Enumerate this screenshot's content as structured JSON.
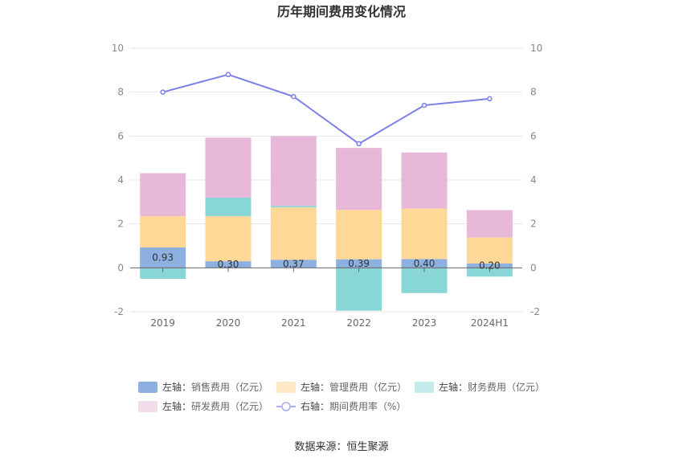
{
  "chart_data": {
    "type": "bar",
    "title": "历年期间费用变化情况",
    "categories": [
      "2019",
      "2020",
      "2021",
      "2022",
      "2023",
      "2024H1"
    ],
    "left_axis": {
      "ylim": [
        -2,
        10
      ],
      "ticks": [
        -2,
        0,
        2,
        4,
        6,
        8,
        10
      ]
    },
    "right_axis": {
      "ylim": [
        -2,
        10
      ],
      "ticks": [
        -2,
        0,
        2,
        4,
        6,
        8,
        10
      ]
    },
    "series": [
      {
        "name": "销售费用（亿元）",
        "axis_label": "左轴：",
        "type": "bar",
        "color": "#8eb0e0",
        "values": [
          0.93,
          0.3,
          0.37,
          0.39,
          0.4,
          0.2
        ]
      },
      {
        "name": "管理费用（亿元）",
        "axis_label": "左轴：",
        "type": "bar",
        "color": "#ffd898",
        "values": [
          1.42,
          2.05,
          2.38,
          2.25,
          2.3,
          1.18
        ]
      },
      {
        "name": "财务费用（亿元）",
        "axis_label": "左轴：",
        "type": "bar",
        "color": "#88d6d6",
        "values": [
          -0.5,
          0.85,
          0.07,
          -1.95,
          -1.15,
          -0.4
        ]
      },
      {
        "name": "研发费用（亿元）",
        "axis_label": "左轴：",
        "type": "bar",
        "color": "#e8b8d8",
        "values": [
          1.96,
          2.73,
          3.18,
          2.82,
          2.55,
          1.25
        ]
      },
      {
        "name": "期间费用率（%）",
        "axis_label": "右轴：",
        "type": "line",
        "color": "#7b7fe8",
        "values": [
          8.0,
          8.8,
          7.8,
          5.65,
          7.4,
          7.7
        ]
      }
    ],
    "data_labels": [
      "0.93",
      "0.30",
      "0.37",
      "0.39",
      "0.40",
      "0.20"
    ]
  },
  "source": "数据来源：恒生聚源"
}
